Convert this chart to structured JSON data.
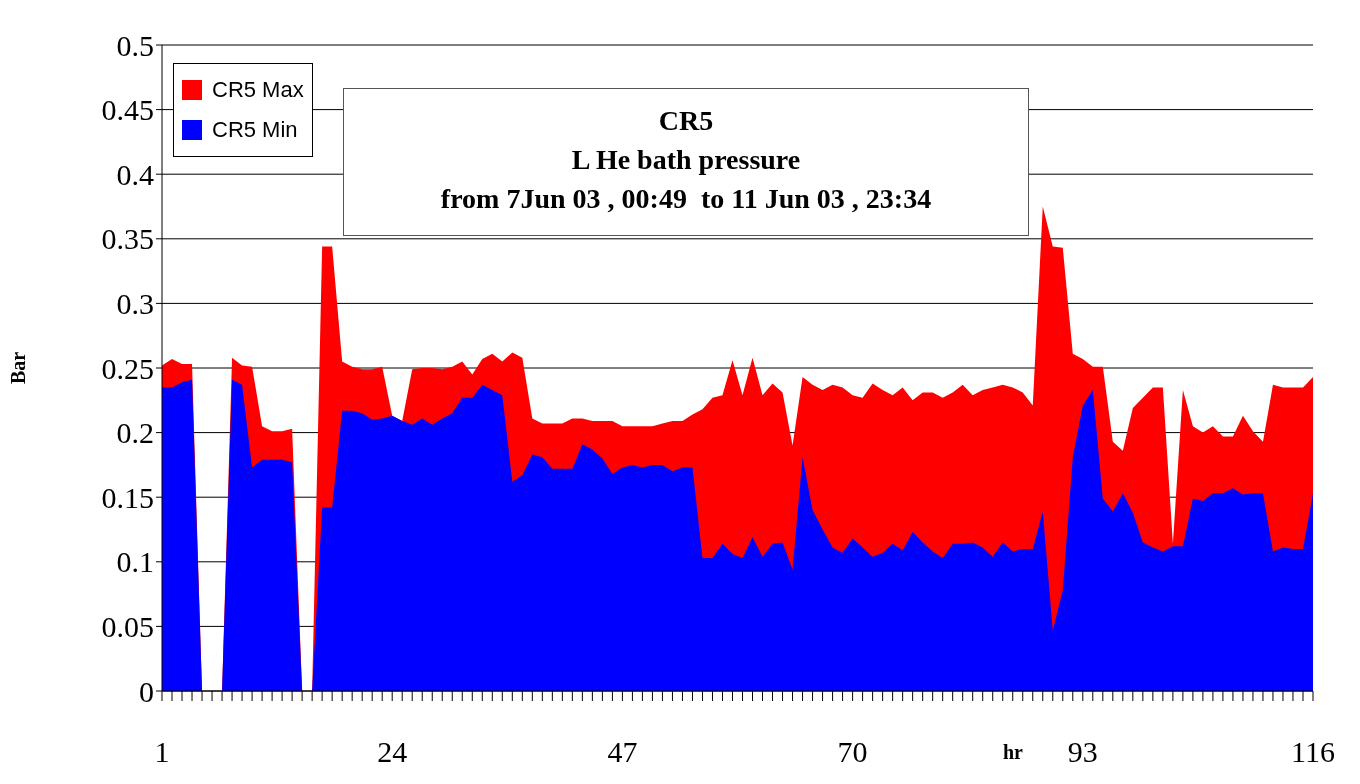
{
  "chart_data": {
    "type": "area",
    "title": "CR5",
    "subtitle": "L He bath pressure",
    "annotations": [
      "from 7Jun 03 , 00:49  to 11 Jun 03 , 23:34"
    ],
    "xlabel": "hr",
    "ylabel": "Bar",
    "categories": [
      "1",
      null,
      null,
      null,
      null,
      null,
      null,
      null,
      null,
      null,
      null,
      null,
      null,
      null,
      null,
      null,
      null,
      null,
      null,
      null,
      null,
      null,
      null,
      "24",
      null,
      null,
      null,
      null,
      null,
      null,
      null,
      null,
      null,
      null,
      null,
      null,
      null,
      null,
      null,
      null,
      null,
      null,
      null,
      null,
      null,
      null,
      "47",
      null,
      null,
      null,
      null,
      null,
      null,
      null,
      null,
      null,
      null,
      null,
      null,
      null,
      null,
      null,
      null,
      null,
      null,
      null,
      null,
      null,
      null,
      "70",
      null,
      null,
      null,
      null,
      null,
      null,
      null,
      null,
      null,
      null,
      null,
      null,
      null,
      null,
      null,
      null,
      null,
      null,
      null,
      null,
      null,
      null,
      "93",
      null,
      null,
      null,
      null,
      null,
      null,
      null,
      null,
      null,
      null,
      null,
      null,
      null,
      null,
      null,
      null,
      null,
      null,
      null,
      null,
      null,
      null,
      "116"
    ],
    "series": [
      {
        "name": "CR5 Max",
        "color": "#ff0000",
        "values": [
          0.252,
          0.257,
          0.253,
          0.253,
          0,
          0,
          0,
          0.258,
          0.252,
          0.251,
          0.205,
          0.201,
          0.201,
          0.203,
          0,
          0,
          0.344,
          0.344,
          0.255,
          0.251,
          0.249,
          0.249,
          0.251,
          0.213,
          0.209,
          0.249,
          0.25,
          0.25,
          0.249,
          0.251,
          0.255,
          0.245,
          0.257,
          0.261,
          0.255,
          0.262,
          0.258,
          0.211,
          0.207,
          0.207,
          0.207,
          0.211,
          0.211,
          0.209,
          0.209,
          0.209,
          0.205,
          0.205,
          0.205,
          0.205,
          0.207,
          0.209,
          0.209,
          0.214,
          0.218,
          0.227,
          0.229,
          0.256,
          0.229,
          0.258,
          0.229,
          0.238,
          0.231,
          0.19,
          0.243,
          0.237,
          0.233,
          0.237,
          0.235,
          0.229,
          0.227,
          0.238,
          0.233,
          0.229,
          0.235,
          0.225,
          0.231,
          0.231,
          0.227,
          0.231,
          0.237,
          0.229,
          0.233,
          0.235,
          0.237,
          0.235,
          0.231,
          0.221,
          0.375,
          0.344,
          0.343,
          0.261,
          0.257,
          0.251,
          0.251,
          0.193,
          0.186,
          0.219,
          0.227,
          0.235,
          0.235,
          0.114,
          0.233,
          0.205,
          0.2,
          0.205,
          0.197,
          0.197,
          0.213,
          0.201,
          0.193,
          0.237,
          0.235,
          0.235,
          0.235,
          0.243
        ]
      },
      {
        "name": "CR5 Min",
        "color": "#0000ff",
        "values": [
          0.235,
          0.235,
          0.239,
          0.241,
          0,
          0,
          0,
          0.241,
          0.237,
          0.173,
          0.179,
          0.179,
          0.179,
          0.177,
          0,
          0,
          0.142,
          0.142,
          0.217,
          0.217,
          0.215,
          0.21,
          0.211,
          0.213,
          0.209,
          0.206,
          0.211,
          0.206,
          0.211,
          0.215,
          0.227,
          0.227,
          0.237,
          0.233,
          0.229,
          0.162,
          0.167,
          0.183,
          0.181,
          0.172,
          0.172,
          0.172,
          0.191,
          0.187,
          0.18,
          0.168,
          0.173,
          0.175,
          0.173,
          0.175,
          0.175,
          0.17,
          0.173,
          0.173,
          0.103,
          0.103,
          0.114,
          0.106,
          0.103,
          0.119,
          0.104,
          0.114,
          0.115,
          0.094,
          0.181,
          0.14,
          0.125,
          0.111,
          0.107,
          0.118,
          0.111,
          0.104,
          0.107,
          0.114,
          0.109,
          0.123,
          0.115,
          0.108,
          0.103,
          0.114,
          0.114,
          0.115,
          0.111,
          0.104,
          0.115,
          0.108,
          0.11,
          0.11,
          0.139,
          0.047,
          0.078,
          0.181,
          0.221,
          0.233,
          0.149,
          0.139,
          0.153,
          0.138,
          0.115,
          0.111,
          0.108,
          0.112,
          0.112,
          0.149,
          0.147,
          0.153,
          0.153,
          0.157,
          0.152,
          0.153,
          0.153,
          0.108,
          0.111,
          0.11,
          0.11,
          0.153
        ]
      }
    ],
    "ylim": [
      0,
      0.5
    ],
    "yticks": [
      0,
      0.05,
      0.1,
      0.15,
      0.2,
      0.25,
      0.3,
      0.35,
      0.4,
      0.45,
      0.5
    ],
    "grid": "y",
    "legend": "left"
  }
}
